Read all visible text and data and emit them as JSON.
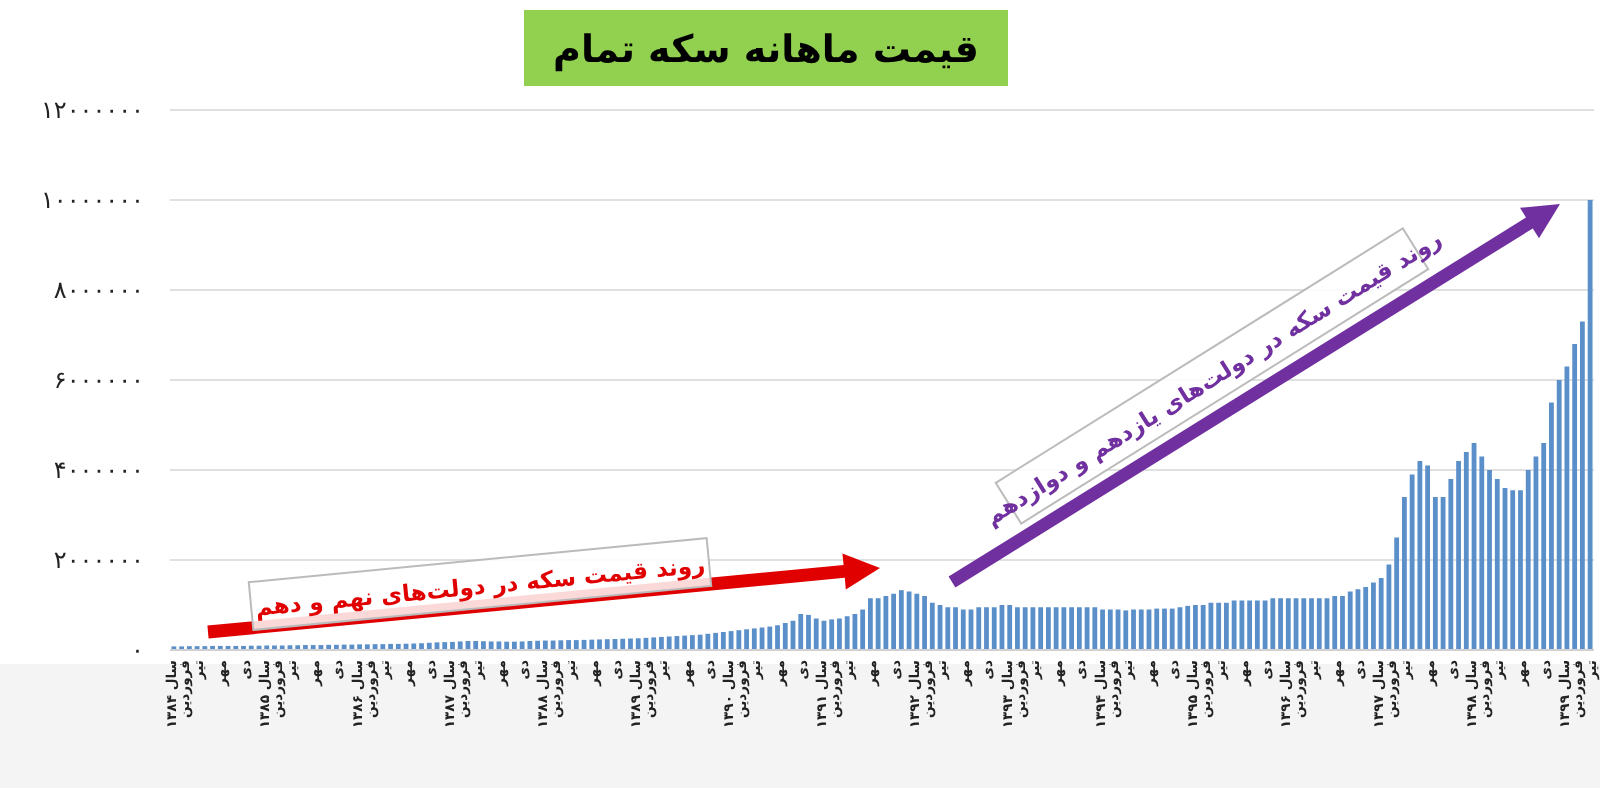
{
  "chart_data": {
    "type": "bar",
    "title": "قیمت ماهانه سکه تمام",
    "categories": [
      "سال ۱۳۸۴ فروردین",
      null,
      null,
      "تیر",
      null,
      null,
      "مهر",
      null,
      null,
      "دی",
      null,
      null,
      "سال ۱۳۸۵ فروردین",
      null,
      null,
      "تیر",
      null,
      null,
      "مهر",
      null,
      null,
      "دی",
      null,
      null,
      "سال ۱۳۸۶ فروردین",
      null,
      null,
      "تیر",
      null,
      null,
      "مهر",
      null,
      null,
      "دی",
      null,
      null,
      "سال ۱۳۸۷ فروردین",
      null,
      null,
      "تیر",
      null,
      null,
      "مهر",
      null,
      null,
      "دی",
      null,
      null,
      "سال ۱۳۸۸ فروردین",
      null,
      null,
      "تیر",
      null,
      null,
      "مهر",
      null,
      null,
      "دی",
      null,
      null,
      "سال ۱۳۸۹ فروردین",
      null,
      null,
      "تیر",
      null,
      null,
      "مهر",
      null,
      null,
      "دی",
      null,
      null,
      "سال ۱۳۹۰ فروردین",
      null,
      null,
      "تیر",
      null,
      null,
      "مهر",
      null,
      null,
      "دی",
      null,
      null,
      "سال ۱۳۹۱ فروردین",
      null,
      null,
      "تیر",
      null,
      null,
      "مهر",
      null,
      null,
      "دی",
      null,
      null,
      "سال ۱۳۹۲ فروردین",
      null,
      null,
      "تیر",
      null,
      null,
      "مهر",
      null,
      null,
      "دی",
      null,
      null,
      "سال ۱۳۹۳ فروردین",
      null,
      null,
      "تیر",
      null,
      null,
      "مهر",
      null,
      null,
      "دی",
      null,
      null,
      "سال ۱۳۹۴ فروردین",
      null,
      null,
      "تیر",
      null,
      null,
      "مهر",
      null,
      null,
      "دی",
      null,
      null,
      "سال ۱۳۹۵ فروردین",
      null,
      null,
      "تیر",
      null,
      null,
      "مهر",
      null,
      null,
      "دی",
      null,
      null,
      "سال ۱۳۹۶ فروردین",
      null,
      null,
      "تیر",
      null,
      null,
      "مهر",
      null,
      null,
      "دی",
      null,
      null,
      "سال ۱۳۹۷ فروردین",
      null,
      null,
      "تیر",
      null,
      null,
      "مهر",
      null,
      null,
      "دی",
      null,
      null,
      "سال ۱۳۹۸ فروردین",
      null,
      null,
      "تیر",
      null,
      null,
      "مهر",
      null,
      null,
      "دی",
      null,
      null,
      "سال ۱۳۹۹ فروردین",
      null,
      null,
      "تیر"
    ],
    "values": [
      80000,
      80000,
      85000,
      85000,
      85000,
      90000,
      90000,
      90000,
      90000,
      90000,
      95000,
      95000,
      100000,
      100000,
      100000,
      105000,
      105000,
      110000,
      110000,
      110000,
      115000,
      115000,
      120000,
      120000,
      125000,
      125000,
      130000,
      130000,
      135000,
      135000,
      140000,
      145000,
      150000,
      160000,
      170000,
      175000,
      180000,
      190000,
      200000,
      200000,
      195000,
      190000,
      190000,
      185000,
      185000,
      190000,
      200000,
      205000,
      210000,
      210000,
      215000,
      220000,
      220000,
      225000,
      230000,
      235000,
      240000,
      245000,
      250000,
      255000,
      260000,
      270000,
      280000,
      290000,
      300000,
      310000,
      320000,
      330000,
      340000,
      360000,
      380000,
      400000,
      420000,
      440000,
      460000,
      480000,
      500000,
      520000,
      550000,
      600000,
      650000,
      800000,
      780000,
      700000,
      650000,
      680000,
      700000,
      750000,
      800000,
      900000,
      1150000,
      1150000,
      1200000,
      1250000,
      1330000,
      1300000,
      1250000,
      1200000,
      1050000,
      1000000,
      950000,
      950000,
      900000,
      900000,
      950000,
      950000,
      950000,
      1000000,
      1000000,
      950000,
      950000,
      950000,
      950000,
      950000,
      950000,
      950000,
      950000,
      950000,
      950000,
      950000,
      900000,
      900000,
      900000,
      880000,
      900000,
      900000,
      900000,
      920000,
      920000,
      920000,
      950000,
      980000,
      1000000,
      1000000,
      1050000,
      1050000,
      1050000,
      1100000,
      1100000,
      1100000,
      1100000,
      1100000,
      1150000,
      1150000,
      1150000,
      1150000,
      1150000,
      1150000,
      1150000,
      1150000,
      1200000,
      1200000,
      1300000,
      1350000,
      1400000,
      1500000,
      1600000,
      1900000,
      2500000,
      3400000,
      3900000,
      4200000,
      4100000,
      3400000,
      3400000,
      3800000,
      4200000,
      4400000,
      4600000,
      4300000,
      4000000,
      3800000,
      3600000,
      3550000,
      3550000,
      4000000,
      4300000,
      4600000,
      5500000,
      6000000,
      6300000,
      6800000,
      7300000,
      10000000
    ],
    "color": "#5b8fc9",
    "ylim": [
      0,
      12000000
    ],
    "yticks": [
      {
        "value": 0,
        "label": "۰"
      },
      {
        "value": 2000000,
        "label": "۲۰۰۰۰۰۰"
      },
      {
        "value": 4000000,
        "label": "۴۰۰۰۰۰۰"
      },
      {
        "value": 6000000,
        "label": "۶۰۰۰۰۰۰"
      },
      {
        "value": 8000000,
        "label": "۸۰۰۰۰۰۰"
      },
      {
        "value": 10000000,
        "label": "۱۰۰۰۰۰۰۰"
      },
      {
        "value": 12000000,
        "label": "۱۲۰۰۰۰۰۰"
      }
    ],
    "grid": "y",
    "annotations": [
      "روند قیمت سکه در دولت‌های نهم و دهم",
      "روند قیمت سکه در دولت‌های یازدهم و دوازدهم"
    ]
  }
}
